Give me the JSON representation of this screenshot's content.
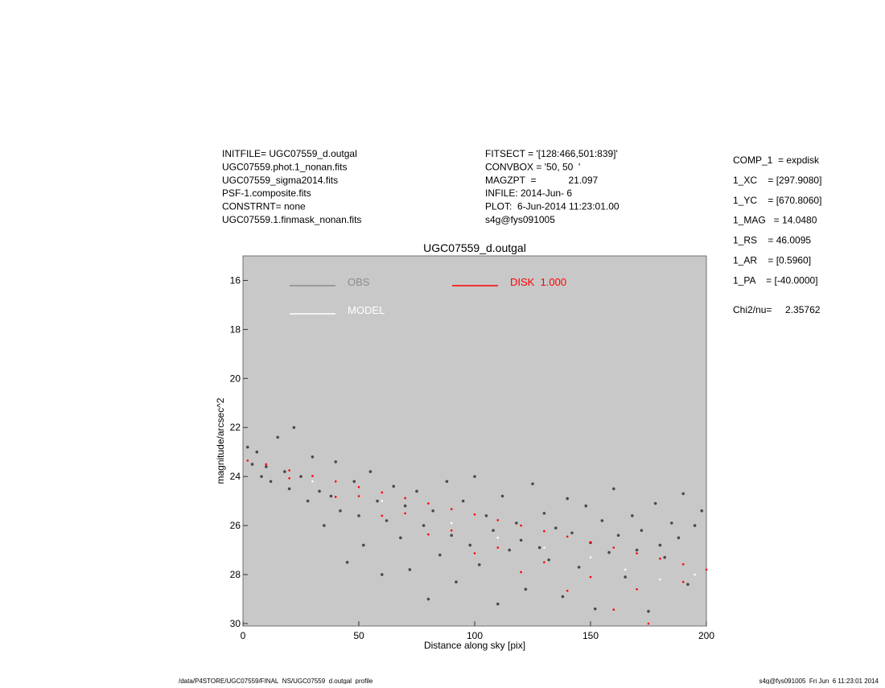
{
  "header": {
    "left": [
      "INITFILE= UGC07559_d.outgal",
      "UGC07559.phot.1_nonan.fits",
      "UGC07559_sigma2014.fits",
      "PSF-1.composite.fits",
      "CONSTRNT= none",
      "UGC07559.1.finmask_nonan.fits"
    ],
    "middle": [
      "FITSECT = '[128:466,501:839]'",
      "CONVBOX = '50, 50  '",
      "MAGZPT  =            21.097",
      "INFILE: 2014-Jun- 6",
      "PLOT:  6-Jun-2014 11:23:01.00",
      "s4g@fys091005"
    ],
    "right": [
      "COMP_1  = expdisk",
      "1_XC    = [297.9080]",
      "1_YC    = [670.8060]",
      "1_MAG   = 14.0480",
      "1_RS    = 46.0095",
      "1_AR    = [0.5960]",
      "1_PA    = [-40.0000]",
      "Chi2/nu=     2.35762"
    ]
  },
  "footer": {
    "left": "/data/P4STORE/UGC07559/FINAL_NS/UGC07559_d.outgal_profile",
    "right": "s4g@fys091005  Fri Jun  6 11:23:01 2014"
  },
  "chart_data": {
    "type": "scatter",
    "title": "UGC07559_d.outgal",
    "x_label": "Distance along sky [pix]",
    "y_label": "magnitude/arcsec^2",
    "xlim": [
      0,
      200
    ],
    "xticks": [
      0,
      50,
      100,
      150,
      200
    ],
    "ylim": [
      15,
      30.1
    ],
    "y_inverted": true,
    "yticks": [
      16,
      18,
      20,
      22,
      24,
      26,
      28,
      30
    ],
    "background": "#c8c8c8",
    "series": [
      {
        "name": "OBS",
        "color": "#4a4a4a",
        "legend_color": "#8c8c8c",
        "x": [
          2,
          4,
          6,
          8,
          10,
          12,
          15,
          18,
          20,
          22,
          25,
          28,
          30,
          33,
          35,
          38,
          40,
          42,
          45,
          48,
          50,
          52,
          55,
          58,
          60,
          62,
          65,
          68,
          70,
          72,
          75,
          78,
          80,
          82,
          85,
          88,
          90,
          92,
          95,
          98,
          100,
          102,
          105,
          108,
          110,
          112,
          115,
          118,
          120,
          122,
          125,
          128,
          130,
          132,
          135,
          138,
          140,
          142,
          145,
          148,
          150,
          152,
          155,
          158,
          160,
          162,
          165,
          168,
          170,
          172,
          175,
          178,
          180,
          182,
          185,
          188,
          190,
          192,
          195,
          198
        ],
        "values": [
          22.8,
          23.5,
          23.0,
          24.0,
          23.6,
          24.2,
          22.4,
          23.8,
          24.5,
          22.0,
          24.0,
          25.0,
          23.2,
          24.6,
          26.0,
          24.8,
          23.4,
          25.4,
          27.5,
          24.2,
          25.6,
          26.8,
          23.8,
          25.0,
          28.0,
          25.8,
          24.4,
          26.5,
          25.2,
          27.8,
          24.6,
          26.0,
          29.0,
          25.4,
          27.2,
          24.2,
          26.4,
          28.3,
          25.0,
          26.8,
          24.0,
          27.6,
          25.6,
          26.2,
          29.2,
          24.8,
          27.0,
          25.9,
          26.6,
          28.6,
          24.3,
          26.9,
          25.5,
          27.4,
          26.1,
          28.9,
          24.9,
          26.3,
          27.7,
          25.2,
          26.7,
          29.4,
          25.8,
          27.1,
          24.5,
          26.4,
          28.1,
          25.6,
          27.0,
          26.2,
          29.5,
          25.1,
          26.8,
          27.3,
          25.9,
          26.5,
          24.7,
          28.4,
          26.0,
          25.4
        ]
      },
      {
        "name": "MODEL",
        "color": "#ffffff",
        "legend_color": "#ffffff",
        "x": [
          30,
          60,
          90,
          110,
          130,
          150,
          165,
          180,
          195
        ],
        "values": [
          24.2,
          25.0,
          25.9,
          26.5,
          26.9,
          27.3,
          27.8,
          28.2,
          28.0
        ]
      },
      {
        "name": "DISK  1.000",
        "color": "#ff0000",
        "legend_color": "#ff0000",
        "x": [
          2,
          10,
          20,
          30,
          40,
          50,
          60,
          70,
          80,
          90,
          100,
          110,
          120,
          130,
          140,
          150,
          160,
          170,
          180,
          190,
          200,
          20,
          40,
          60,
          80,
          100,
          120,
          140,
          160,
          175,
          50,
          70,
          90,
          110,
          130,
          150,
          170,
          190
        ],
        "values": [
          23.35,
          23.5,
          23.75,
          23.98,
          24.2,
          24.43,
          24.65,
          24.88,
          25.1,
          25.33,
          25.55,
          25.78,
          26.0,
          26.23,
          26.45,
          26.68,
          26.9,
          27.13,
          27.35,
          27.58,
          27.8,
          24.07,
          24.83,
          25.6,
          26.36,
          27.13,
          27.9,
          28.66,
          29.43,
          30.0,
          24.8,
          25.5,
          26.2,
          26.9,
          27.5,
          28.1,
          28.6,
          28.3
        ]
      }
    ]
  }
}
